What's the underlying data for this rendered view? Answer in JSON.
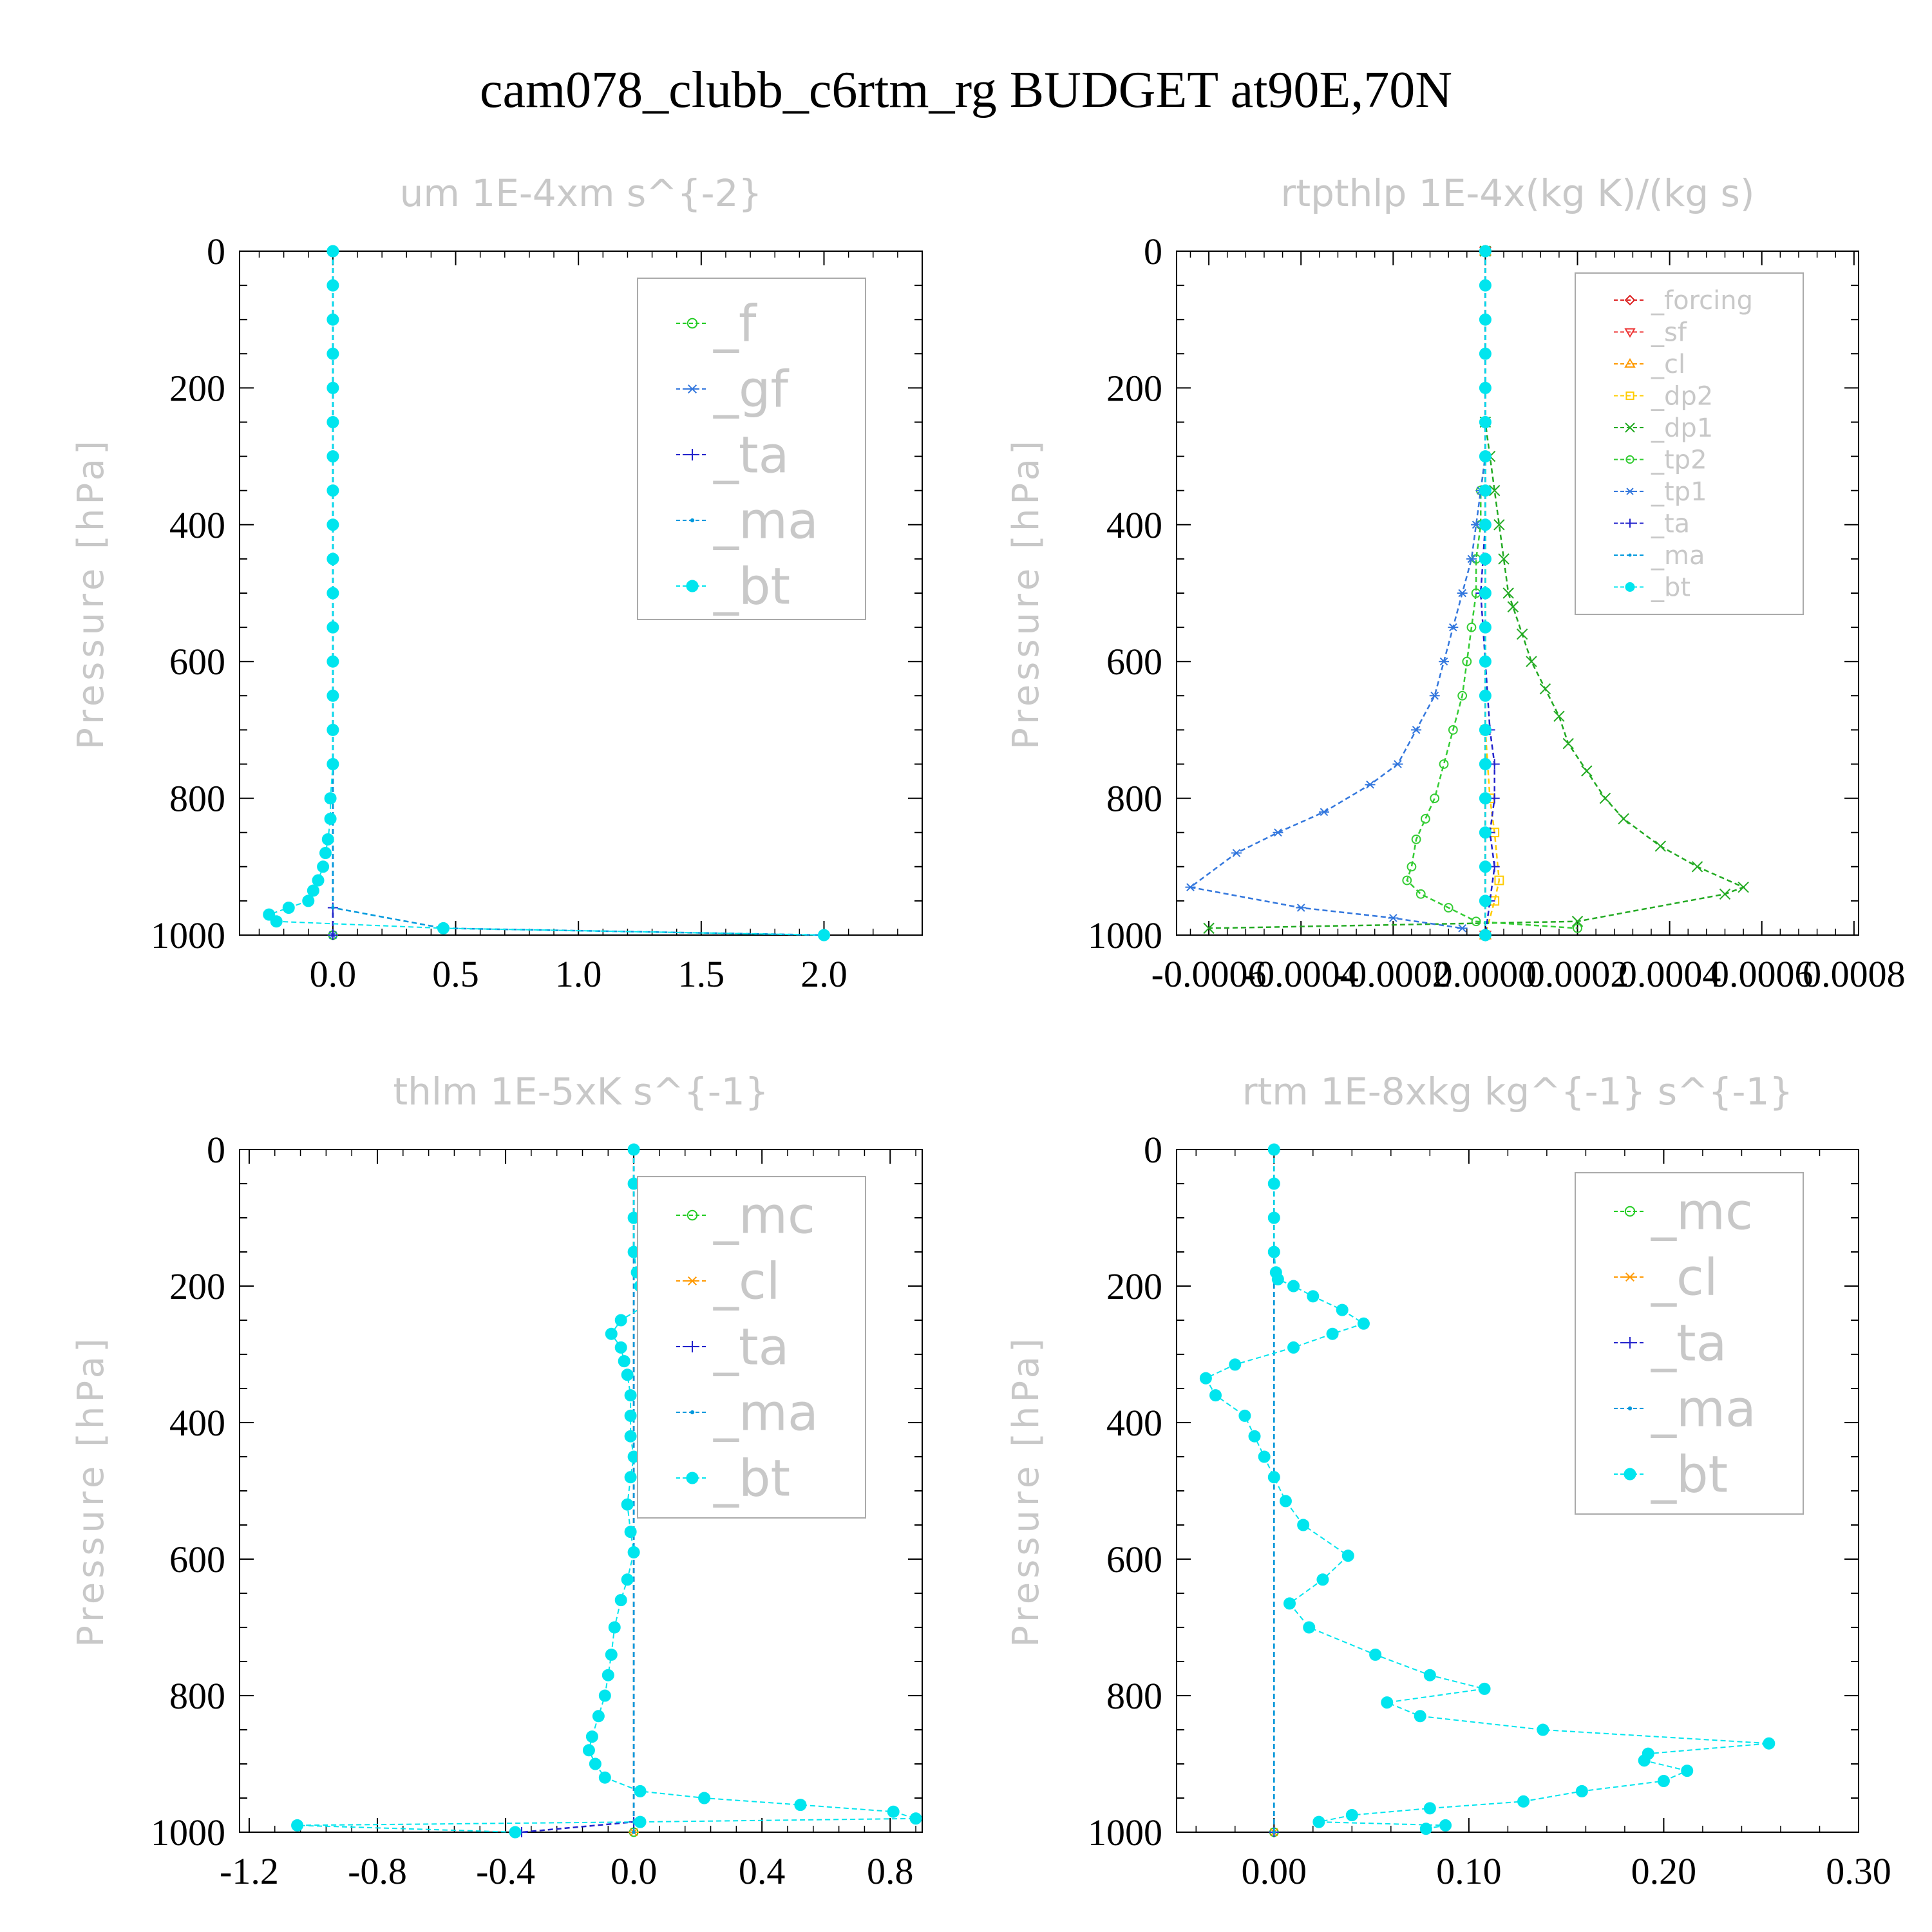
{
  "page_title": "cam078_clubb_c6rtm_rg  BUDGET at90E,70N",
  "colors": {
    "f": "#22cc22",
    "gf": "#3377dd",
    "ta": "#2222cc",
    "ma": "#0099dd",
    "bt": "#00e5ee",
    "forcing": "#dd2222",
    "sf": "#ee3333",
    "cl": "#ff9900",
    "dp2": "#ffcc00",
    "dp1": "#22aa22",
    "tp2": "#33cc33",
    "tp1": "#3377dd",
    "mc": "#22cc22",
    "title_gray": "#c8c8c8"
  },
  "chart_data": [
    {
      "type": "line",
      "title": "um  1E-4xm s^{-2}",
      "ylabel": "Pressure [hPa]",
      "ylim": [
        1000,
        0
      ],
      "xlim": [
        -0.38,
        2.4
      ],
      "xticks": [
        0.0,
        0.5,
        1.0,
        1.5,
        2.0
      ],
      "xtick_labels": [
        "0.0",
        "0.5",
        "1.0",
        "1.5",
        "2.0"
      ],
      "yticks": [
        0,
        200,
        400,
        600,
        800,
        1000
      ],
      "ytick_labels": [
        "0",
        "200",
        "400",
        "600",
        "800",
        "1000"
      ],
      "legend": {
        "placement": "top-right",
        "entries": [
          "_f",
          "_gf",
          "_ta",
          "_ma",
          "_bt"
        ]
      },
      "series": [
        {
          "name": "_f",
          "marker": "circle-open",
          "x": [
            0,
            0
          ],
          "y": [
            0,
            1000
          ]
        },
        {
          "name": "_gf",
          "marker": "asterisk",
          "x": [
            0,
            0
          ],
          "y": [
            0,
            1000
          ]
        },
        {
          "name": "_ta",
          "marker": "plus",
          "x": [
            0,
            0,
            0
          ],
          "y": [
            0,
            960,
            1000
          ]
        },
        {
          "name": "_ma",
          "marker": "dot",
          "x": [
            0,
            0,
            0.45,
            2.0
          ],
          "y": [
            0,
            960,
            990,
            1000
          ]
        },
        {
          "name": "_bt",
          "marker": "filled-circle",
          "x": [
            0,
            0,
            0,
            0,
            0,
            0,
            0,
            0,
            0,
            0,
            0,
            0,
            0,
            0,
            0,
            0,
            -0.01,
            -0.01,
            -0.02,
            -0.03,
            -0.04,
            -0.06,
            -0.08,
            -0.1,
            -0.18,
            -0.26,
            -0.23,
            0.45,
            2.0
          ],
          "y": [
            0,
            50,
            100,
            150,
            200,
            250,
            300,
            350,
            400,
            450,
            500,
            550,
            600,
            650,
            700,
            750,
            800,
            830,
            860,
            880,
            900,
            920,
            935,
            950,
            960,
            970,
            980,
            990,
            1000
          ]
        }
      ]
    },
    {
      "type": "line",
      "title": "rtpthlp  1E-4x(kg K)/(kg s)",
      "ylabel": "Pressure [hPa]",
      "ylim": [
        1000,
        0
      ],
      "xlim": [
        -0.00067,
        0.00081
      ],
      "xticks": [
        -0.0006,
        -0.0004,
        -0.0002,
        0.0,
        0.0002,
        0.0004,
        0.0006,
        0.0008
      ],
      "xtick_labels": [
        "-0.0006",
        "-0.0004",
        "-0.0002",
        "0.0000",
        "0.0002",
        "0.0004",
        "0.0006",
        "0.0008"
      ],
      "yticks": [
        0,
        200,
        400,
        600,
        800,
        1000
      ],
      "ytick_labels": [
        "0",
        "200",
        "400",
        "600",
        "800",
        "1000"
      ],
      "legend": {
        "placement": "top-right",
        "entries": [
          "_forcing",
          "_sf",
          "_cl",
          "_dp2",
          "_dp1",
          "_tp2",
          "_tp1",
          "_ta",
          "_ma",
          "_bt"
        ]
      },
      "series": [
        {
          "name": "_forcing",
          "marker": "diamond-open",
          "x": [
            0,
            0
          ],
          "y": [
            0,
            1000
          ]
        },
        {
          "name": "_sf",
          "marker": "triangle-down",
          "x": [
            0,
            0
          ],
          "y": [
            0,
            1000
          ]
        },
        {
          "name": "_cl",
          "marker": "triangle-up",
          "x": [
            0,
            0
          ],
          "y": [
            0,
            1000
          ]
        },
        {
          "name": "_dp2",
          "marker": "square-open",
          "x": [
            0,
            0,
            1e-05,
            2e-05,
            3e-05,
            2e-05,
            0
          ],
          "y": [
            0,
            700,
            800,
            850,
            920,
            950,
            1000
          ]
        },
        {
          "name": "_dp1",
          "marker": "x",
          "x": [
            0,
            0,
            1e-05,
            2e-05,
            3e-05,
            4e-05,
            5e-05,
            6e-05,
            8e-05,
            0.0001,
            0.00013,
            0.00016,
            0.00018,
            0.00022,
            0.00026,
            0.0003,
            0.00038,
            0.00046,
            0.00056,
            0.00052,
            0.0002,
            -0.0006
          ],
          "y": [
            0,
            250,
            300,
            350,
            400,
            450,
            500,
            520,
            560,
            600,
            640,
            680,
            720,
            760,
            800,
            830,
            870,
            900,
            930,
            940,
            980,
            990
          ]
        },
        {
          "name": "_tp2",
          "marker": "circle-open",
          "x": [
            0,
            0,
            -1e-05,
            -1e-05,
            -2e-05,
            -2e-05,
            -3e-05,
            -4e-05,
            -5e-05,
            -7e-05,
            -9e-05,
            -0.00011,
            -0.00013,
            -0.00015,
            -0.00016,
            -0.00017,
            -0.00014,
            -8e-05,
            -2e-05,
            0.0002
          ],
          "y": [
            0,
            300,
            350,
            400,
            450,
            500,
            550,
            600,
            650,
            700,
            750,
            800,
            830,
            860,
            900,
            920,
            940,
            960,
            980,
            990
          ]
        },
        {
          "name": "_tp1",
          "marker": "asterisk",
          "x": [
            0,
            0,
            -1e-05,
            -2e-05,
            -3e-05,
            -5e-05,
            -7e-05,
            -9e-05,
            -0.00011,
            -0.00015,
            -0.00019,
            -0.00025,
            -0.00035,
            -0.00045,
            -0.00054,
            -0.00064,
            -0.0004,
            -0.0002,
            -5e-05
          ],
          "y": [
            0,
            300,
            350,
            400,
            450,
            500,
            550,
            600,
            650,
            700,
            750,
            780,
            820,
            850,
            880,
            930,
            960,
            975,
            990
          ]
        },
        {
          "name": "_ta",
          "marker": "plus",
          "x": [
            0,
            0,
            -1e-05,
            0,
            1e-05,
            2e-05,
            2e-05,
            1e-05,
            2e-05,
            1e-05,
            0
          ],
          "y": [
            0,
            400,
            500,
            600,
            700,
            750,
            800,
            850,
            900,
            950,
            1000
          ]
        },
        {
          "name": "_ma",
          "marker": "dot",
          "x": [
            0,
            0
          ],
          "y": [
            0,
            1000
          ]
        },
        {
          "name": "_bt",
          "marker": "filled-circle",
          "x": [
            0,
            0,
            0,
            0,
            0,
            0,
            0,
            0,
            0,
            0,
            0,
            0,
            0,
            0,
            0,
            0,
            0,
            0,
            0,
            0,
            0
          ],
          "y": [
            0,
            50,
            100,
            150,
            200,
            250,
            300,
            350,
            400,
            450,
            500,
            550,
            600,
            650,
            700,
            750,
            800,
            850,
            900,
            950,
            1000
          ]
        }
      ]
    },
    {
      "type": "line",
      "title": "thlm  1E-5xK s^{-1}",
      "ylabel": "Pressure [hPa]",
      "ylim": [
        1000,
        0
      ],
      "xlim": [
        -1.23,
        0.9
      ],
      "xticks": [
        -1.2,
        -0.8,
        -0.4,
        0.0,
        0.4,
        0.8
      ],
      "xtick_labels": [
        "-1.2",
        "-0.8",
        "-0.4",
        "0.0",
        "0.4",
        "0.8"
      ],
      "yticks": [
        0,
        200,
        400,
        600,
        800,
        1000
      ],
      "ytick_labels": [
        "0",
        "200",
        "400",
        "600",
        "800",
        "1000"
      ],
      "legend": {
        "placement": "top-right",
        "entries": [
          "_mc",
          "_cl",
          "_ta",
          "_ma",
          "_bt"
        ]
      },
      "series": [
        {
          "name": "_mc",
          "marker": "circle-open",
          "x": [
            0,
            0
          ],
          "y": [
            0,
            1000
          ]
        },
        {
          "name": "_cl",
          "marker": "asterisk",
          "x": [
            0,
            0
          ],
          "y": [
            0,
            1000
          ]
        },
        {
          "name": "_ta",
          "marker": "plus",
          "x": [
            0,
            0,
            -0.35
          ],
          "y": [
            0,
            985,
            1000
          ]
        },
        {
          "name": "_ma",
          "marker": "dot",
          "x": [
            0,
            0
          ],
          "y": [
            0,
            1000
          ]
        },
        {
          "name": "_bt",
          "marker": "filled-circle",
          "x": [
            0,
            0,
            0,
            0,
            0.01,
            0.02,
            0.04,
            0.03,
            -0.04,
            -0.07,
            -0.04,
            -0.03,
            -0.02,
            -0.01,
            -0.01,
            -0.01,
            0,
            -0.01,
            -0.02,
            -0.01,
            0,
            -0.02,
            -0.04,
            -0.06,
            -0.07,
            -0.08,
            -0.09,
            -0.11,
            -0.13,
            -0.14,
            -0.12,
            -0.09,
            0.02,
            0.22,
            0.52,
            0.81,
            0.88,
            0.02,
            -1.05,
            -0.37
          ],
          "y": [
            0,
            50,
            100,
            150,
            180,
            200,
            210,
            230,
            250,
            270,
            290,
            310,
            330,
            360,
            390,
            420,
            450,
            480,
            520,
            560,
            590,
            630,
            660,
            700,
            740,
            770,
            800,
            830,
            860,
            880,
            900,
            920,
            940,
            950,
            960,
            970,
            980,
            985,
            990,
            1000
          ]
        }
      ]
    },
    {
      "type": "line",
      "title": "rtm  1E-8xkg kg^{-1} s^{-1}",
      "ylabel": "Pressure [hPa]",
      "ylim": [
        1000,
        0
      ],
      "xlim": [
        -0.05,
        0.3
      ],
      "xticks": [
        0.0,
        0.1,
        0.2,
        0.3
      ],
      "xtick_labels": [
        "0.00",
        "0.10",
        "0.20",
        "0.30"
      ],
      "yticks": [
        0,
        200,
        400,
        600,
        800,
        1000
      ],
      "ytick_labels": [
        "0",
        "200",
        "400",
        "600",
        "800",
        "1000"
      ],
      "legend": {
        "placement": "top-right",
        "entries": [
          "_mc",
          "_cl",
          "_ta",
          "_ma",
          "_bt"
        ]
      },
      "series": [
        {
          "name": "_mc",
          "marker": "circle-open",
          "x": [
            0,
            0
          ],
          "y": [
            0,
            1000
          ]
        },
        {
          "name": "_cl",
          "marker": "asterisk",
          "x": [
            0,
            0
          ],
          "y": [
            0,
            1000
          ]
        },
        {
          "name": "_ta",
          "marker": "plus",
          "x": [
            0,
            0
          ],
          "y": [
            0,
            1000
          ]
        },
        {
          "name": "_ma",
          "marker": "dot",
          "x": [
            0,
            0
          ],
          "y": [
            0,
            1000
          ]
        },
        {
          "name": "_bt",
          "marker": "filled-circle",
          "x": [
            0,
            0,
            0,
            0,
            0.001,
            0.002,
            0.01,
            0.02,
            0.035,
            0.046,
            0.03,
            0.01,
            -0.02,
            -0.035,
            -0.03,
            -0.015,
            -0.01,
            -0.005,
            0.0,
            0.006,
            0.015,
            0.038,
            0.025,
            0.008,
            0.018,
            0.052,
            0.08,
            0.108,
            0.058,
            0.075,
            0.138,
            0.254,
            0.192,
            0.19,
            0.212,
            0.2,
            0.158,
            0.128,
            0.08,
            0.04,
            0.023,
            0.088,
            0.078
          ],
          "y": [
            0,
            50,
            100,
            150,
            180,
            190,
            200,
            215,
            235,
            255,
            270,
            290,
            315,
            335,
            360,
            390,
            420,
            450,
            480,
            515,
            550,
            595,
            630,
            665,
            700,
            740,
            770,
            790,
            810,
            830,
            850,
            870,
            885,
            895,
            910,
            925,
            940,
            955,
            965,
            975,
            985,
            990,
            995
          ]
        }
      ]
    }
  ]
}
